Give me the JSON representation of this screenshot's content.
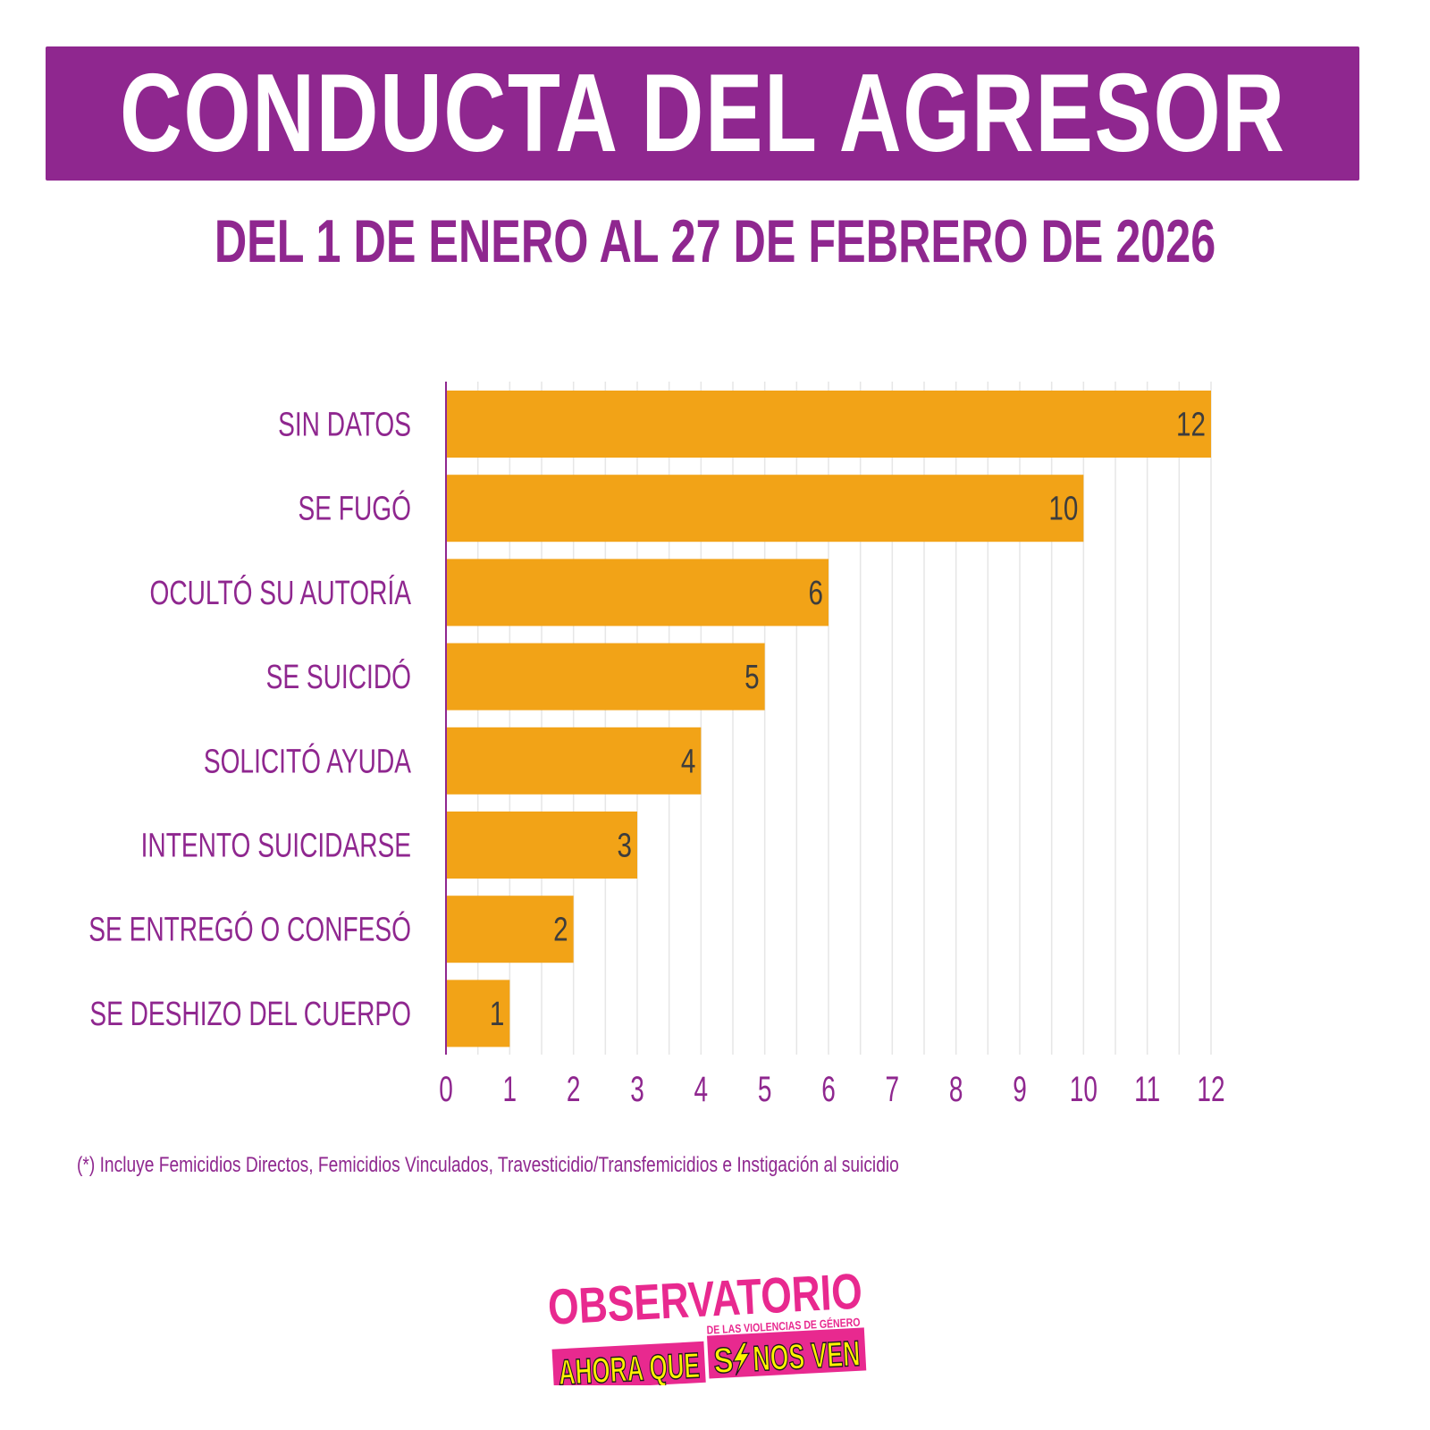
{
  "header": {
    "title": "CONDUCTA DEL AGRESOR",
    "subtitle": "DEL 1 DE ENERO AL 27 DE FEBRERO DE 2026"
  },
  "colors": {
    "purple": "#8f278f",
    "bar": "#f2a317",
    "value_label": "#3d3d3d",
    "grid": "#e6e6e6",
    "logo_pink": "#e8298f",
    "logo_yellow": "#fff200"
  },
  "chart_data": {
    "type": "bar",
    "orientation": "horizontal",
    "title": "CONDUCTA DEL AGRESOR",
    "subtitle": "DEL 1 DE ENERO AL 27 DE FEBRERO DE 2026",
    "xlabel": "",
    "ylabel": "",
    "categories": [
      "SIN DATOS",
      "SE FUGÓ",
      "OCULTÓ SU AUTORÍA",
      "SE SUICIDÓ",
      "SOLICITÓ AYUDA",
      "INTENTO SUICIDARSE",
      "SE ENTREGÓ O CONFESÓ",
      "SE DESHIZO DEL CUERPO"
    ],
    "values": [
      12,
      10,
      6,
      5,
      4,
      3,
      2,
      1
    ],
    "data_labels": [
      "12",
      "10",
      "6",
      "5",
      "4",
      "3",
      "2",
      "1"
    ],
    "xlim": [
      0,
      12
    ],
    "x_ticks": [
      "0",
      "1",
      "2",
      "3",
      "4",
      "5",
      "6",
      "7",
      "8",
      "9",
      "10",
      "11",
      "12"
    ],
    "grid": true,
    "legend": "none"
  },
  "footnote": "(*) Incluye Femicidios Directos, Femicidios Vinculados,  Travesticidio/Transfemicidios e Instigación al suicidio",
  "logo": {
    "line1": "OBSERVATORIO",
    "line2": "DE LAS VIOLENCIAS DE GÉNERO",
    "line3a": "AHORA QUE",
    "line3b": "S",
    "line3c": "NOS VEN"
  }
}
